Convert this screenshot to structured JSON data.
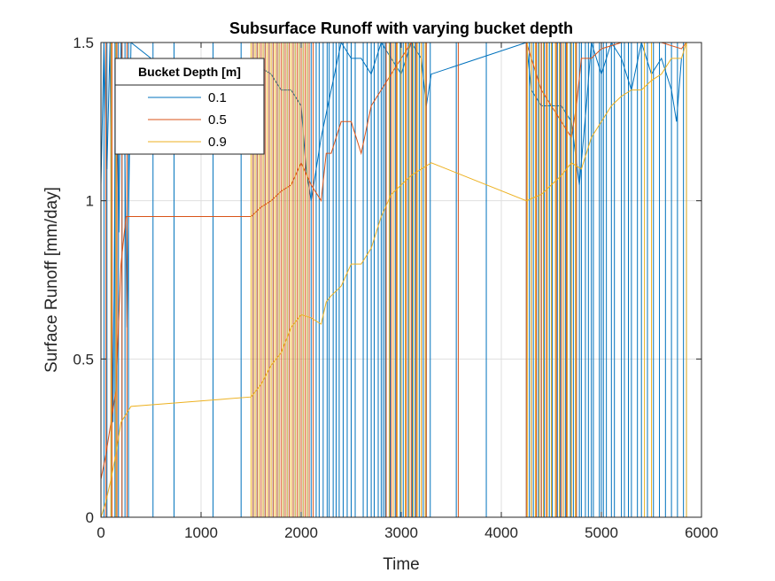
{
  "chart_data": {
    "type": "line",
    "title": "Subsurface Runoff with varying bucket depth",
    "xlabel": "Time",
    "ylabel": "Surface Runoff [mm/day]",
    "xlim": [
      0,
      6000
    ],
    "ylim": [
      0,
      1.5
    ],
    "xticks": [
      0,
      1000,
      2000,
      3000,
      4000,
      5000,
      6000
    ],
    "xtick_labels": [
      "0",
      "1000",
      "2000",
      "3000",
      "4000",
      "5000",
      "6000"
    ],
    "yticks": [
      0,
      0.5,
      1,
      1.5
    ],
    "ytick_labels": [
      "0",
      "0.5",
      "1",
      "1.5"
    ],
    "grid": true,
    "legend": {
      "title": "Bucket Depth [m]",
      "placement": "top-left",
      "entries": [
        "0.1",
        "0.5",
        "0.9"
      ]
    },
    "series": [
      {
        "name": "0.1",
        "color": "#0072BD",
        "points": [
          [
            0,
            1.05
          ],
          [
            30,
            1.5
          ],
          [
            60,
            1.1
          ],
          [
            90,
            1.5
          ],
          [
            120,
            0.3
          ],
          [
            150,
            1.5
          ],
          [
            180,
            0.9
          ],
          [
            200,
            1.5
          ],
          [
            230,
            1.35
          ],
          [
            260,
            0.6
          ],
          [
            300,
            1.5
          ],
          [
            1500,
            1.2
          ],
          [
            1600,
            1.42
          ],
          [
            1700,
            1.4
          ],
          [
            1800,
            1.35
          ],
          [
            1900,
            1.35
          ],
          [
            2000,
            1.3
          ],
          [
            2050,
            1.1
          ],
          [
            2100,
            1.0
          ],
          [
            2200,
            1.2
          ],
          [
            2300,
            1.35
          ],
          [
            2400,
            1.5
          ],
          [
            2500,
            1.45
          ],
          [
            2600,
            1.45
          ],
          [
            2700,
            1.4
          ],
          [
            2800,
            1.5
          ],
          [
            2900,
            1.45
          ],
          [
            3000,
            1.4
          ],
          [
            3100,
            1.5
          ],
          [
            3200,
            1.45
          ],
          [
            3250,
            1.3
          ],
          [
            3300,
            1.4
          ],
          [
            4250,
            1.5
          ],
          [
            4300,
            1.35
          ],
          [
            4400,
            1.3
          ],
          [
            4500,
            1.3
          ],
          [
            4600,
            1.3
          ],
          [
            4700,
            1.25
          ],
          [
            4780,
            1.05
          ],
          [
            4850,
            1.3
          ],
          [
            4900,
            1.5
          ],
          [
            5000,
            1.4
          ],
          [
            5100,
            1.5
          ],
          [
            5200,
            1.45
          ],
          [
            5300,
            1.35
          ],
          [
            5400,
            1.5
          ],
          [
            5500,
            1.4
          ],
          [
            5600,
            1.45
          ],
          [
            5700,
            1.35
          ],
          [
            5750,
            1.25
          ],
          [
            5800,
            1.45
          ]
        ],
        "spikes": [
          30,
          60,
          100,
          140,
          175,
          210,
          240,
          275,
          520,
          730,
          1120,
          1400,
          1500,
          1520,
          1560,
          1580,
          1620,
          1640,
          1680,
          1720,
          1760,
          1780,
          1820,
          1860,
          1880,
          1920,
          1940,
          1980,
          2000,
          2020,
          2060,
          2100,
          2150,
          2180,
          2220,
          2260,
          2280,
          2320,
          2350,
          2380,
          2420,
          2460,
          2500,
          2540,
          2620,
          2660,
          2700,
          2730,
          2770,
          2800,
          2820,
          2840,
          2890,
          2940,
          2960,
          2990,
          3020,
          3070,
          3110,
          3140,
          3180,
          3220,
          3250,
          3290,
          3550,
          3850,
          4250,
          4280,
          4300,
          4320,
          4350,
          4370,
          4400,
          4430,
          4460,
          4480,
          4510,
          4540,
          4560,
          4590,
          4620,
          4640,
          4660,
          4690,
          4720,
          4750,
          4780,
          4800,
          4840,
          4870,
          4900,
          4920,
          4980,
          5000,
          5020,
          5050,
          5100,
          5130,
          5200,
          5230,
          5270,
          5300,
          5360,
          5400,
          5460,
          5520,
          5580,
          5640,
          5700,
          5760,
          5820,
          5850
        ]
      },
      {
        "name": "0.5",
        "color": "#D95319",
        "points": [
          [
            0,
            0.12
          ],
          [
            50,
            0.2
          ],
          [
            100,
            0.3
          ],
          [
            150,
            0.4
          ],
          [
            200,
            0.8
          ],
          [
            250,
            0.95
          ],
          [
            300,
            0.95
          ],
          [
            1500,
            0.95
          ],
          [
            1600,
            0.98
          ],
          [
            1700,
            1.0
          ],
          [
            1800,
            1.03
          ],
          [
            1900,
            1.05
          ],
          [
            2000,
            1.12
          ],
          [
            2100,
            1.05
          ],
          [
            2200,
            1.0
          ],
          [
            2250,
            1.15
          ],
          [
            2300,
            1.15
          ],
          [
            2400,
            1.25
          ],
          [
            2500,
            1.25
          ],
          [
            2600,
            1.15
          ],
          [
            2700,
            1.3
          ],
          [
            2800,
            1.35
          ],
          [
            2900,
            1.4
          ],
          [
            3000,
            1.45
          ],
          [
            3100,
            1.5
          ],
          [
            3200,
            1.5
          ],
          [
            3300,
            1.5
          ],
          [
            4250,
            1.5
          ],
          [
            4350,
            1.4
          ],
          [
            4400,
            1.35
          ],
          [
            4500,
            1.3
          ],
          [
            4600,
            1.25
          ],
          [
            4700,
            1.2
          ],
          [
            4750,
            1.3
          ],
          [
            4800,
            1.45
          ],
          [
            4900,
            1.45
          ],
          [
            5000,
            1.48
          ],
          [
            5200,
            1.5
          ],
          [
            5400,
            1.5
          ],
          [
            5600,
            1.5
          ],
          [
            5800,
            1.48
          ],
          [
            5850,
            1.5
          ]
        ],
        "spikes": [
          50,
          110,
          160,
          210,
          260,
          1520,
          1560,
          1600,
          1640,
          1680,
          1720,
          1760,
          1800,
          1840,
          1880,
          1920,
          1960,
          2000,
          2040,
          2080,
          2120,
          2850,
          2900,
          2950,
          3000,
          3050,
          3100,
          3150,
          3200,
          3250,
          3570,
          4250,
          4300,
          4350,
          4400,
          4450,
          4500,
          4550,
          4600,
          4650,
          4700,
          4750
        ]
      },
      {
        "name": "0.9",
        "color": "#EDB120",
        "points": [
          [
            0,
            0.0
          ],
          [
            50,
            0.05
          ],
          [
            100,
            0.12
          ],
          [
            150,
            0.2
          ],
          [
            200,
            0.3
          ],
          [
            300,
            0.35
          ],
          [
            1500,
            0.38
          ],
          [
            1600,
            0.42
          ],
          [
            1700,
            0.48
          ],
          [
            1800,
            0.52
          ],
          [
            1900,
            0.6
          ],
          [
            2000,
            0.64
          ],
          [
            2100,
            0.63
          ],
          [
            2200,
            0.61
          ],
          [
            2250,
            0.68
          ],
          [
            2300,
            0.7
          ],
          [
            2400,
            0.73
          ],
          [
            2500,
            0.8
          ],
          [
            2600,
            0.8
          ],
          [
            2700,
            0.85
          ],
          [
            2800,
            0.95
          ],
          [
            2900,
            1.02
          ],
          [
            3000,
            1.05
          ],
          [
            3100,
            1.08
          ],
          [
            3200,
            1.1
          ],
          [
            3300,
            1.12
          ],
          [
            4250,
            1.0
          ],
          [
            4400,
            1.02
          ],
          [
            4500,
            1.05
          ],
          [
            4600,
            1.08
          ],
          [
            4700,
            1.12
          ],
          [
            4800,
            1.1
          ],
          [
            4900,
            1.2
          ],
          [
            5000,
            1.25
          ],
          [
            5100,
            1.3
          ],
          [
            5200,
            1.33
          ],
          [
            5300,
            1.35
          ],
          [
            5400,
            1.35
          ],
          [
            5500,
            1.38
          ],
          [
            5600,
            1.4
          ],
          [
            5700,
            1.45
          ],
          [
            5800,
            1.45
          ],
          [
            5850,
            1.5
          ]
        ],
        "spikes": [
          100,
          150,
          1500,
          1540,
          1580,
          1620,
          1660,
          1700,
          1740,
          1780,
          1820,
          1860,
          1900,
          1940,
          1980,
          2020,
          2060,
          2880,
          2920,
          2960,
          3000,
          3040,
          3080,
          3120,
          3160,
          3200,
          3240,
          4260,
          4300,
          4340,
          4380,
          4420,
          4460,
          4500,
          4540,
          4580,
          4620,
          4660,
          4700,
          4740,
          5430,
          5500,
          5850
        ]
      }
    ]
  }
}
